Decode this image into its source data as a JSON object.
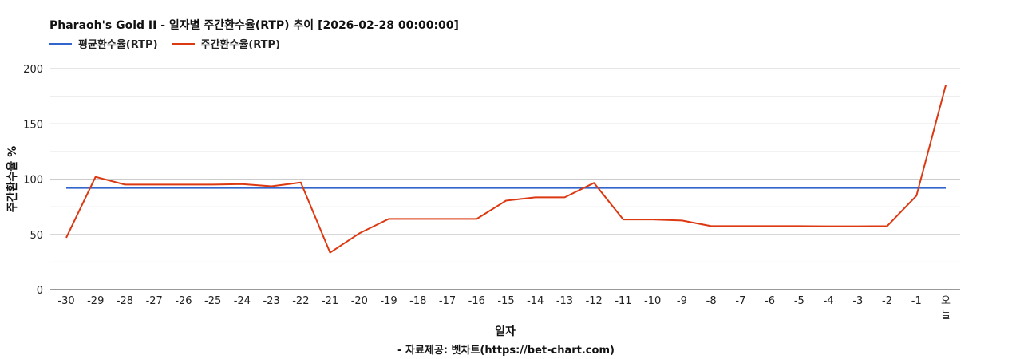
{
  "chart_data": {
    "type": "line",
    "title": "Pharaoh's Gold II - 일자별 주간환수율(RTP) 추이 [2026-02-28 00:00:00]",
    "xlabel": "일자",
    "ylabel": "주간환수율 %",
    "source": "- 자료제공: 벳차트(https://bet-chart.com)",
    "categories": [
      "-30",
      "-29",
      "-28",
      "-27",
      "-26",
      "-25",
      "-24",
      "-23",
      "-22",
      "-21",
      "-20",
      "-19",
      "-18",
      "-17",
      "-16",
      "-15",
      "-14",
      "-13",
      "-12",
      "-11",
      "-10",
      "-9",
      "-8",
      "-7",
      "-6",
      "-5",
      "-4",
      "-3",
      "-2",
      "-1",
      "오늘"
    ],
    "yticks": [
      0,
      50,
      100,
      150,
      200
    ],
    "ylim": [
      0,
      200
    ],
    "grid": true,
    "legend": "top-left",
    "series": [
      {
        "name": "평균환수율(RTP)",
        "color": "#3366cc",
        "values": [
          92,
          92,
          92,
          92,
          92,
          92,
          92,
          92,
          92,
          92,
          92,
          92,
          92,
          92,
          92,
          92,
          92,
          92,
          92,
          92,
          92,
          92,
          92,
          92,
          92,
          92,
          92,
          92,
          92,
          92,
          92
        ]
      },
      {
        "name": "주간환수율(RTP)",
        "color": "#dc3912",
        "values": [
          47,
          102,
          95,
          95,
          95,
          95,
          95.5,
          93.5,
          97,
          33.5,
          51,
          64,
          64,
          64,
          64,
          80.5,
          83.5,
          83.5,
          96.5,
          63.5,
          63.5,
          62.5,
          57.5,
          57.5,
          57.5,
          57.5,
          57.3,
          57.3,
          57.5,
          85,
          185
        ]
      }
    ]
  }
}
